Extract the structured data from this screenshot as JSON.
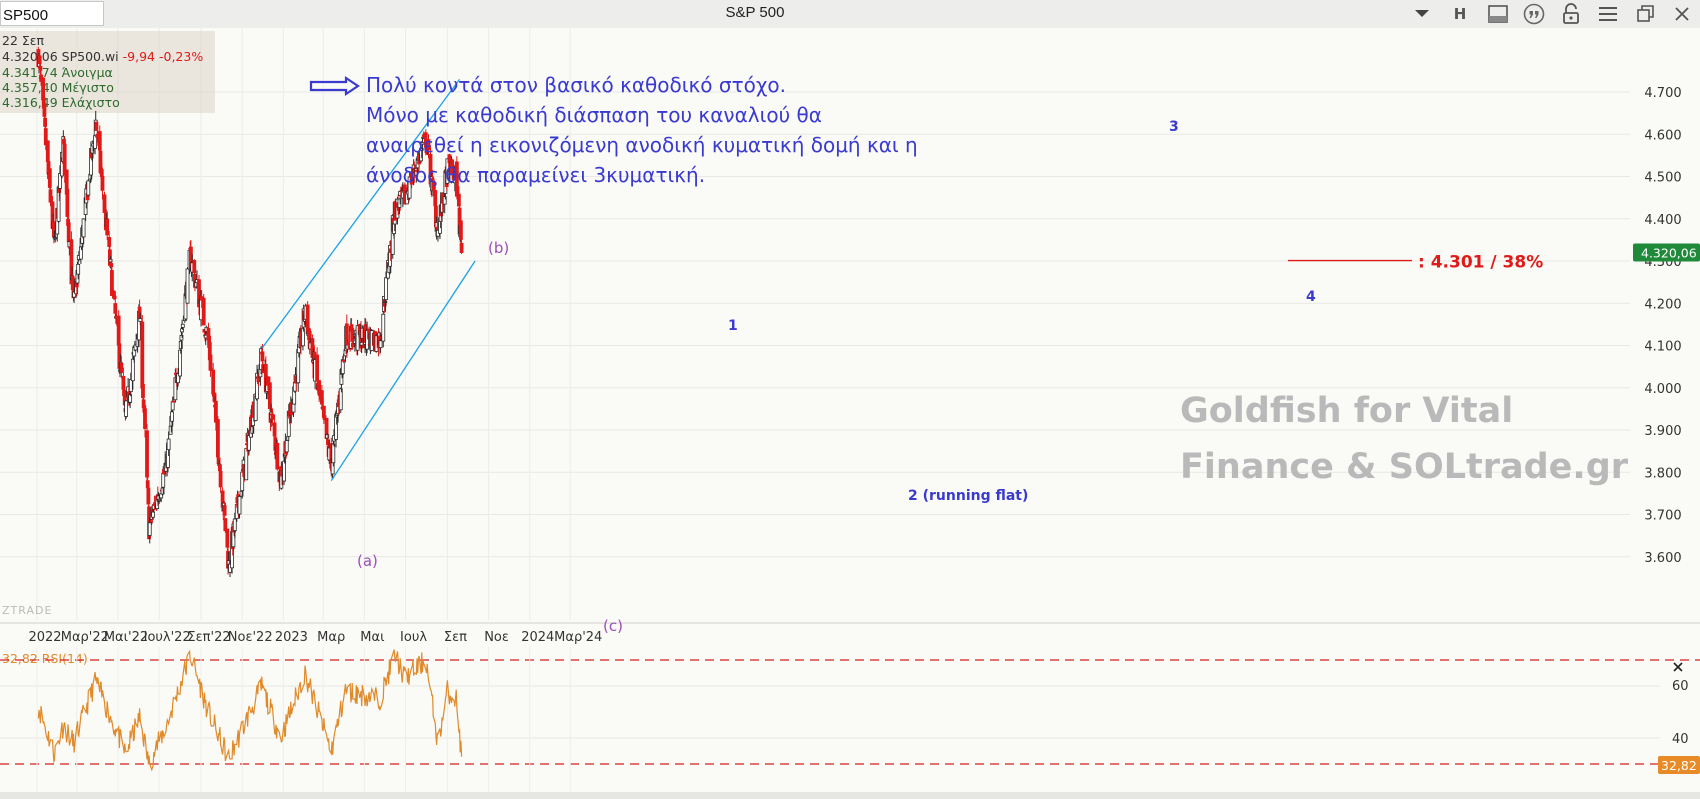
{
  "toolbar": {
    "symbol": "SP500",
    "title": "S&P 500",
    "chevron_icon": "chevron-down-icon",
    "h_label": "H",
    "buttons": [
      "panel-icon",
      "quote-icon",
      "lock-icon",
      "menu-icon",
      "restore-icon",
      "close-icon"
    ]
  },
  "info": {
    "date": "22 Σεπ",
    "last": "4.320,06",
    "name": "SP500.wi",
    "change": "-9,94",
    "change_pct": "-0,23%",
    "open": "4.341,74",
    "open_label": "Άνοιγμα",
    "high": "4.357,40",
    "high_label": "Μέγιστο",
    "low": "4.316,49",
    "low_label": "Ελάχιστο"
  },
  "annotation": {
    "lines": [
      "Πολύ κοντά στον βασικό καθοδικό στόχο.",
      "Μόνο με καθοδική διάσπαση του καναλιού θα",
      "αναιρεθεί η εικονιζόμενη ανοδική κυματική δομή και η",
      "άνοδος θα παραμείνει 3κυματική."
    ],
    "target": ": 4.301 / 38%",
    "watermark_lines": [
      "Goldfish for Vital",
      "Finance & SOLtrade.gr"
    ],
    "brand": "ZTRADE"
  },
  "wave_labels": {
    "a": "(a)",
    "b": "(b)",
    "c": "(c)",
    "w1": "1",
    "w2": "2 (running flat)",
    "w3": "3",
    "w4": "4"
  },
  "price_badge": "4.320,06",
  "rsi": {
    "label": "RSI(14)",
    "value": "32,82",
    "ticks": [
      "60",
      "40"
    ],
    "close_icon": "close-icon"
  },
  "colors": {
    "up": "#2a2a2a",
    "down": "#e01919",
    "channel": "#1aa2e6",
    "wave_blue": "#3a3ad0",
    "wave_purple": "#9b4fb8",
    "rsi": "#e08a2a",
    "badge": "#1f8a3a",
    "rsi_badge": "#e88a25"
  },
  "chart_data": {
    "type": "candlestick",
    "symbol": "SP500",
    "yticks": [
      "4.700",
      "4.600",
      "4.500",
      "4.400",
      "4.300",
      "4.200",
      "4.100",
      "4.000",
      "3.900",
      "3.800",
      "3.700",
      "3.600"
    ],
    "ytick_values": [
      4700,
      4600,
      4500,
      4400,
      4300,
      4200,
      4100,
      4000,
      3900,
      3800,
      3700,
      3600
    ],
    "xticks": [
      "2022",
      "Μαρ'22",
      "Μαι'22",
      "Ιουλ'22",
      "Σεπ'22",
      "Νοε'22",
      "2023",
      "Μαρ",
      "Μαι",
      "Ιουλ",
      "Σεπ",
      "Νοε",
      "2024",
      "Μαρ'24"
    ],
    "ylim": [
      3500,
      4780
    ],
    "anchors": [
      {
        "date": "2022-01-03",
        "close": 4790
      },
      {
        "date": "2022-01-27",
        "close": 4330
      },
      {
        "date": "2022-02-09",
        "close": 4580
      },
      {
        "date": "2022-02-24",
        "close": 4190
      },
      {
        "date": "2022-03-29",
        "close": 4630
      },
      {
        "date": "2022-05-12",
        "close": 3930
      },
      {
        "date": "2022-06-02",
        "close": 4170
      },
      {
        "date": "2022-06-16",
        "close": 3670
      },
      {
        "date": "2022-07-12",
        "close": 3820
      },
      {
        "date": "2022-08-16",
        "close": 4310
      },
      {
        "date": "2022-09-12",
        "close": 4110
      },
      {
        "date": "2022-10-12",
        "close": 3580
      },
      {
        "date": "2022-11-30",
        "close": 4080
      },
      {
        "date": "2022-12-28",
        "close": 3785
      },
      {
        "date": "2023-02-02",
        "close": 4180
      },
      {
        "date": "2023-03-13",
        "close": 3810
      },
      {
        "date": "2023-04-03",
        "close": 4120
      },
      {
        "date": "2023-05-24",
        "close": 4115
      },
      {
        "date": "2023-06-15",
        "close": 4420
      },
      {
        "date": "2023-06-30",
        "close": 4450
      },
      {
        "date": "2023-07-31",
        "close": 4590
      },
      {
        "date": "2023-08-18",
        "close": 4370
      },
      {
        "date": "2023-09-01",
        "close": 4515
      },
      {
        "date": "2023-09-14",
        "close": 4500
      },
      {
        "date": "2023-09-22",
        "close": 4320
      }
    ],
    "channel_upper": [
      {
        "date": "2022-12-01",
        "value": 4095
      },
      {
        "date": "2023-09-19",
        "value": 4730
      }
    ],
    "channel_lower": [
      {
        "date": "2023-03-13",
        "value": 3780
      },
      {
        "date": "2023-10-12",
        "value": 4300
      }
    ],
    "target_level": 4301,
    "rsi_levels": [
      70,
      30
    ],
    "rsi_anchors": [
      {
        "date": "2022-01-03",
        "value": 52
      },
      {
        "date": "2022-01-27",
        "value": 34
      },
      {
        "date": "2022-02-09",
        "value": 45
      },
      {
        "date": "2022-02-24",
        "value": 38
      },
      {
        "date": "2022-03-29",
        "value": 62
      },
      {
        "date": "2022-05-12",
        "value": 34
      },
      {
        "date": "2022-06-02",
        "value": 48
      },
      {
        "date": "2022-06-16",
        "value": 30
      },
      {
        "date": "2022-07-12",
        "value": 45
      },
      {
        "date": "2022-08-16",
        "value": 72
      },
      {
        "date": "2022-09-12",
        "value": 50
      },
      {
        "date": "2022-10-12",
        "value": 32
      },
      {
        "date": "2022-11-30",
        "value": 60
      },
      {
        "date": "2022-12-28",
        "value": 40
      },
      {
        "date": "2023-02-02",
        "value": 65
      },
      {
        "date": "2023-03-13",
        "value": 35
      },
      {
        "date": "2023-04-03",
        "value": 58
      },
      {
        "date": "2023-05-24",
        "value": 55
      },
      {
        "date": "2023-06-15",
        "value": 72
      },
      {
        "date": "2023-06-30",
        "value": 63
      },
      {
        "date": "2023-07-31",
        "value": 70
      },
      {
        "date": "2023-08-18",
        "value": 38
      },
      {
        "date": "2023-09-01",
        "value": 58
      },
      {
        "date": "2023-09-14",
        "value": 55
      },
      {
        "date": "2023-09-22",
        "value": 32.82
      }
    ]
  }
}
